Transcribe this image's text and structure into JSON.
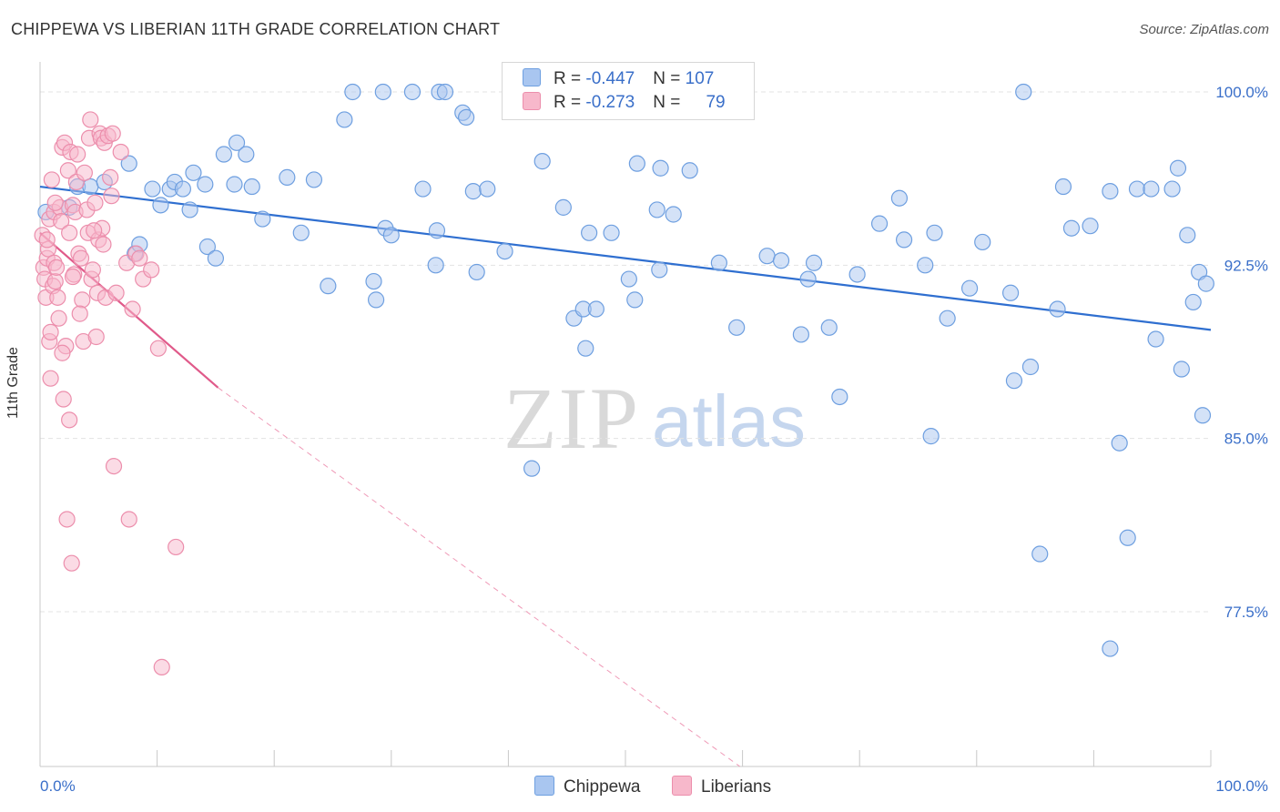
{
  "header": {
    "title": "CHIPPEWA VS LIBERIAN 11TH GRADE CORRELATION CHART",
    "source": "Source: ZipAtlas.com"
  },
  "watermark": {
    "zip": "ZIP",
    "atlas": "atlas"
  },
  "legend": {
    "rows": [
      {
        "r_label": "R = ",
        "r_value": "-0.447",
        "n_label": "N = ",
        "n_value": "107"
      },
      {
        "r_label": "R = ",
        "r_value": "-0.273",
        "n_label": "N = ",
        "n_value": "79"
      }
    ]
  },
  "colors": {
    "chippewa_fill": "#a9c6f0",
    "chippewa_stroke": "#6e9fe0",
    "chippewa_line": "#2f6fd0",
    "liberians_fill": "#f7b8cb",
    "liberians_stroke": "#ec8eac",
    "liberians_line": "#e05a8a",
    "tick_text": "#3a6fc9"
  },
  "chart_data": {
    "type": "scatter",
    "title": "CHIPPEWA VS LIBERIAN 11TH GRADE CORRELATION CHART",
    "xlabel": "",
    "ylabel": "11th Grade",
    "xlim": [
      0,
      100
    ],
    "ylim": [
      70.8,
      101.3
    ],
    "x_tick_labels": [
      "0.0%",
      "100.0%"
    ],
    "y_ticks": [
      {
        "value": 100.0,
        "label": "100.0%"
      },
      {
        "value": 92.5,
        "label": "92.5%"
      },
      {
        "value": 85.0,
        "label": "85.0%"
      },
      {
        "value": 77.5,
        "label": "77.5%"
      }
    ],
    "grid": true,
    "legend_position": "top-center",
    "series": [
      {
        "name": "Chippewa",
        "r": -0.447,
        "n": 107,
        "trend": {
          "x0": 0,
          "y0": 95.9,
          "x1": 100,
          "y1": 89.7
        },
        "points": [
          [
            0.5,
            94.8
          ],
          [
            2.5,
            95.0
          ],
          [
            3.2,
            95.9
          ],
          [
            4.3,
            95.9
          ],
          [
            5.5,
            96.1
          ],
          [
            7.6,
            96.9
          ],
          [
            8.1,
            93.0
          ],
          [
            8.5,
            93.4
          ],
          [
            9.6,
            95.8
          ],
          [
            10.3,
            95.1
          ],
          [
            11.1,
            95.8
          ],
          [
            11.5,
            96.1
          ],
          [
            12.2,
            95.8
          ],
          [
            12.8,
            94.9
          ],
          [
            13.1,
            96.5
          ],
          [
            14.1,
            96.0
          ],
          [
            14.3,
            93.3
          ],
          [
            15.0,
            92.8
          ],
          [
            15.7,
            97.3
          ],
          [
            16.6,
            96.0
          ],
          [
            16.8,
            97.8
          ],
          [
            17.6,
            97.3
          ],
          [
            18.1,
            95.9
          ],
          [
            19.0,
            94.5
          ],
          [
            21.1,
            96.3
          ],
          [
            22.3,
            93.9
          ],
          [
            23.4,
            96.2
          ],
          [
            24.6,
            91.6
          ],
          [
            26.0,
            98.8
          ],
          [
            26.7,
            100.0
          ],
          [
            28.5,
            91.8
          ],
          [
            28.7,
            91.0
          ],
          [
            29.3,
            100.0
          ],
          [
            29.5,
            94.1
          ],
          [
            30.0,
            93.8
          ],
          [
            31.8,
            100.0
          ],
          [
            32.7,
            95.8
          ],
          [
            33.8,
            92.5
          ],
          [
            33.9,
            94.0
          ],
          [
            34.1,
            100.0
          ],
          [
            34.6,
            100.0
          ],
          [
            36.1,
            99.1
          ],
          [
            36.4,
            98.9
          ],
          [
            37.0,
            95.7
          ],
          [
            37.3,
            92.2
          ],
          [
            38.2,
            95.8
          ],
          [
            39.7,
            93.1
          ],
          [
            42.0,
            83.7
          ],
          [
            42.9,
            97.0
          ],
          [
            44.7,
            95.0
          ],
          [
            45.6,
            90.2
          ],
          [
            46.4,
            90.6
          ],
          [
            46.6,
            88.9
          ],
          [
            46.9,
            93.9
          ],
          [
            47.5,
            90.6
          ],
          [
            48.8,
            93.9
          ],
          [
            50.3,
            91.9
          ],
          [
            50.8,
            91.0
          ],
          [
            51.0,
            96.9
          ],
          [
            52.7,
            94.9
          ],
          [
            52.9,
            92.3
          ],
          [
            53.0,
            96.7
          ],
          [
            54.1,
            94.7
          ],
          [
            55.5,
            96.6
          ],
          [
            58.0,
            92.6
          ],
          [
            59.5,
            89.8
          ],
          [
            62.1,
            92.9
          ],
          [
            63.3,
            92.7
          ],
          [
            65.0,
            89.5
          ],
          [
            65.6,
            91.9
          ],
          [
            66.1,
            92.6
          ],
          [
            67.4,
            89.8
          ],
          [
            68.3,
            86.8
          ],
          [
            69.8,
            92.1
          ],
          [
            71.7,
            94.3
          ],
          [
            73.4,
            95.4
          ],
          [
            73.8,
            93.6
          ],
          [
            75.6,
            92.5
          ],
          [
            76.1,
            85.1
          ],
          [
            76.4,
            93.9
          ],
          [
            77.5,
            90.2
          ],
          [
            79.4,
            91.5
          ],
          [
            80.5,
            93.5
          ],
          [
            82.9,
            91.3
          ],
          [
            83.2,
            87.5
          ],
          [
            84.0,
            100.0
          ],
          [
            84.6,
            88.1
          ],
          [
            85.4,
            80.0
          ],
          [
            86.9,
            90.6
          ],
          [
            87.4,
            95.9
          ],
          [
            88.1,
            94.1
          ],
          [
            89.7,
            94.2
          ],
          [
            91.4,
            95.7
          ],
          [
            91.4,
            75.9
          ],
          [
            92.2,
            84.8
          ],
          [
            92.9,
            80.7
          ],
          [
            93.7,
            95.8
          ],
          [
            94.9,
            95.8
          ],
          [
            95.3,
            89.3
          ],
          [
            96.7,
            95.8
          ],
          [
            97.2,
            96.7
          ],
          [
            97.5,
            88.0
          ],
          [
            98.0,
            93.8
          ],
          [
            98.5,
            90.9
          ],
          [
            99.0,
            92.2
          ],
          [
            99.3,
            86.0
          ],
          [
            99.6,
            91.7
          ]
        ]
      },
      {
        "name": "Liberians",
        "r": -0.273,
        "n": 79,
        "trend": {
          "x0": 0,
          "y0": 93.9,
          "x1": 15.2,
          "y1": 87.2
        },
        "trend_extension": {
          "x0": 15.2,
          "y0": 87.2,
          "x1": 100,
          "y1": 56.0
        },
        "points": [
          [
            0.2,
            93.8
          ],
          [
            0.3,
            92.4
          ],
          [
            0.4,
            91.9
          ],
          [
            0.5,
            91.1
          ],
          [
            0.6,
            92.8
          ],
          [
            0.7,
            93.2
          ],
          [
            0.8,
            94.5
          ],
          [
            0.8,
            89.2
          ],
          [
            0.9,
            87.6
          ],
          [
            1.0,
            96.2
          ],
          [
            1.1,
            91.6
          ],
          [
            1.2,
            94.8
          ],
          [
            1.2,
            92.6
          ],
          [
            1.3,
            91.8
          ],
          [
            1.4,
            92.4
          ],
          [
            1.5,
            91.1
          ],
          [
            1.6,
            90.2
          ],
          [
            1.7,
            95.0
          ],
          [
            1.8,
            94.4
          ],
          [
            1.9,
            97.6
          ],
          [
            2.0,
            86.7
          ],
          [
            2.1,
            97.8
          ],
          [
            2.2,
            89.0
          ],
          [
            2.3,
            81.5
          ],
          [
            2.4,
            96.6
          ],
          [
            2.5,
            85.8
          ],
          [
            2.5,
            93.9
          ],
          [
            2.6,
            97.4
          ],
          [
            2.7,
            79.6
          ],
          [
            2.8,
            95.1
          ],
          [
            2.9,
            92.1
          ],
          [
            3.0,
            94.8
          ],
          [
            3.1,
            96.1
          ],
          [
            3.2,
            97.3
          ],
          [
            3.3,
            93.0
          ],
          [
            3.5,
            92.8
          ],
          [
            3.7,
            89.2
          ],
          [
            3.8,
            96.5
          ],
          [
            4.0,
            94.9
          ],
          [
            4.1,
            93.9
          ],
          [
            4.2,
            98.0
          ],
          [
            4.3,
            98.8
          ],
          [
            4.4,
            91.9
          ],
          [
            4.5,
            92.3
          ],
          [
            4.7,
            95.2
          ],
          [
            4.8,
            89.4
          ],
          [
            4.9,
            91.3
          ],
          [
            5.0,
            93.6
          ],
          [
            5.1,
            98.2
          ],
          [
            5.2,
            98.0
          ],
          [
            5.3,
            94.1
          ],
          [
            5.4,
            93.4
          ],
          [
            5.5,
            97.8
          ],
          [
            5.6,
            91.1
          ],
          [
            5.8,
            98.1
          ],
          [
            6.0,
            96.3
          ],
          [
            6.1,
            95.5
          ],
          [
            6.2,
            98.2
          ],
          [
            6.3,
            83.8
          ],
          [
            6.5,
            91.3
          ],
          [
            6.9,
            97.4
          ],
          [
            7.4,
            92.6
          ],
          [
            7.6,
            81.5
          ],
          [
            7.9,
            90.6
          ],
          [
            8.2,
            93.0
          ],
          [
            8.5,
            92.8
          ],
          [
            8.8,
            91.9
          ],
          [
            9.5,
            92.3
          ],
          [
            10.1,
            88.9
          ],
          [
            10.4,
            75.1
          ],
          [
            11.6,
            80.3
          ],
          [
            3.6,
            91.0
          ],
          [
            1.9,
            88.7
          ],
          [
            0.6,
            93.6
          ],
          [
            0.9,
            89.6
          ],
          [
            2.8,
            92.0
          ],
          [
            4.6,
            94.0
          ],
          [
            3.4,
            90.4
          ],
          [
            1.3,
            95.2
          ]
        ]
      }
    ]
  },
  "bottom_legend": {
    "items": [
      {
        "label": "Chippewa"
      },
      {
        "label": "Liberians"
      }
    ]
  }
}
